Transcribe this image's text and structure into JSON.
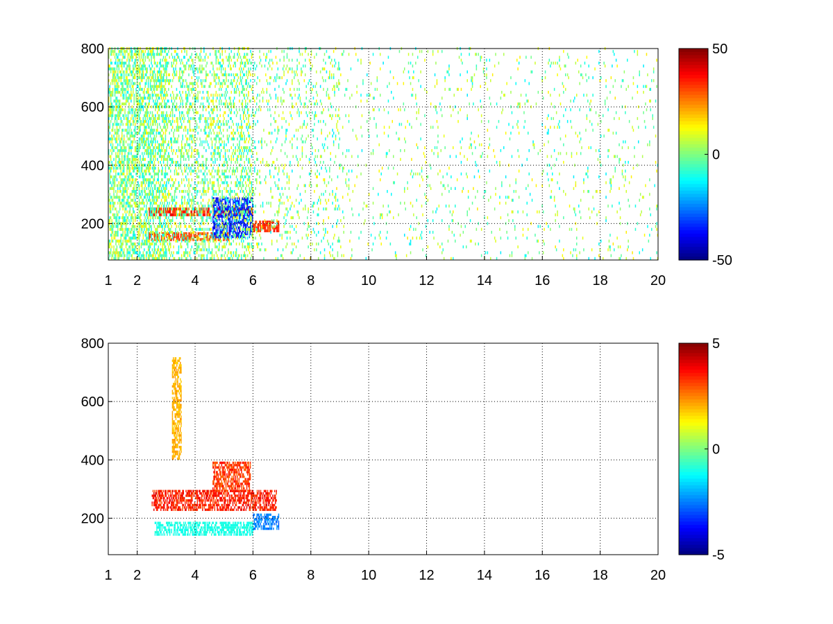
{
  "figure": {
    "background": "#ffffff"
  },
  "chart_data": [
    {
      "type": "heatmap",
      "title": "",
      "xlabel": "",
      "ylabel": "",
      "xlim": [
        1,
        20
      ],
      "ylim": [
        75,
        800
      ],
      "xticks": [
        1,
        2,
        4,
        6,
        8,
        10,
        12,
        14,
        16,
        18,
        20
      ],
      "yticks": [
        200,
        400,
        600,
        800
      ],
      "xgrid": [
        2,
        4,
        6,
        8,
        10,
        12,
        14,
        16,
        18,
        20
      ],
      "grid": true,
      "colormap": "jet",
      "colorbar": {
        "min": -50,
        "max": 50,
        "ticks": [
          -50,
          0,
          50
        ]
      },
      "features": [
        {
          "description": "positive band near 240",
          "x": [
            2.4,
            6.0
          ],
          "y": [
            225,
            255
          ],
          "value": 35
        },
        {
          "description": "positive band near 155",
          "x": [
            2.4,
            5.2
          ],
          "y": [
            140,
            170
          ],
          "value": 30
        },
        {
          "description": "negative patches",
          "x": [
            4.6,
            6.0
          ],
          "y": [
            150,
            290
          ],
          "value": -35
        },
        {
          "description": "positive band near 185",
          "x": [
            6.0,
            6.9
          ],
          "y": [
            170,
            205
          ],
          "value": 32
        },
        {
          "description": "scattered noise",
          "x": [
            1,
            20
          ],
          "y": [
            75,
            800
          ],
          "value_range": [
            -15,
            15
          ]
        }
      ]
    },
    {
      "type": "heatmap",
      "title": "",
      "xlabel": "",
      "ylabel": "",
      "xlim": [
        1,
        20
      ],
      "ylim": [
        75,
        800
      ],
      "xticks": [
        1,
        2,
        4,
        6,
        8,
        10,
        12,
        14,
        16,
        18,
        20
      ],
      "yticks": [
        200,
        400,
        600,
        800
      ],
      "xgrid": [
        2,
        4,
        6,
        8,
        10,
        12,
        14,
        16,
        18,
        20
      ],
      "grid": true,
      "colormap": "jet",
      "colorbar": {
        "min": -5,
        "max": 5,
        "ticks": [
          -5,
          0,
          5
        ]
      },
      "features": [
        {
          "description": "positive band near 245",
          "x": [
            2.5,
            6.8
          ],
          "y": [
            225,
            290
          ],
          "value": 3.5
        },
        {
          "description": "positive spikes up to 390",
          "x": [
            4.6,
            5.9
          ],
          "y": [
            290,
            390
          ],
          "value": 3.2
        },
        {
          "description": "near-zero/negative band near 165",
          "x": [
            2.6,
            6.0
          ],
          "y": [
            140,
            185
          ],
          "value": -1.0
        },
        {
          "description": "negative band near 180",
          "x": [
            6.0,
            6.9
          ],
          "y": [
            160,
            210
          ],
          "value": -2.5
        },
        {
          "description": "sparse column near x=3.3",
          "x": [
            3.2,
            3.5
          ],
          "y": [
            400,
            750
          ],
          "value": 2.0
        }
      ]
    }
  ]
}
